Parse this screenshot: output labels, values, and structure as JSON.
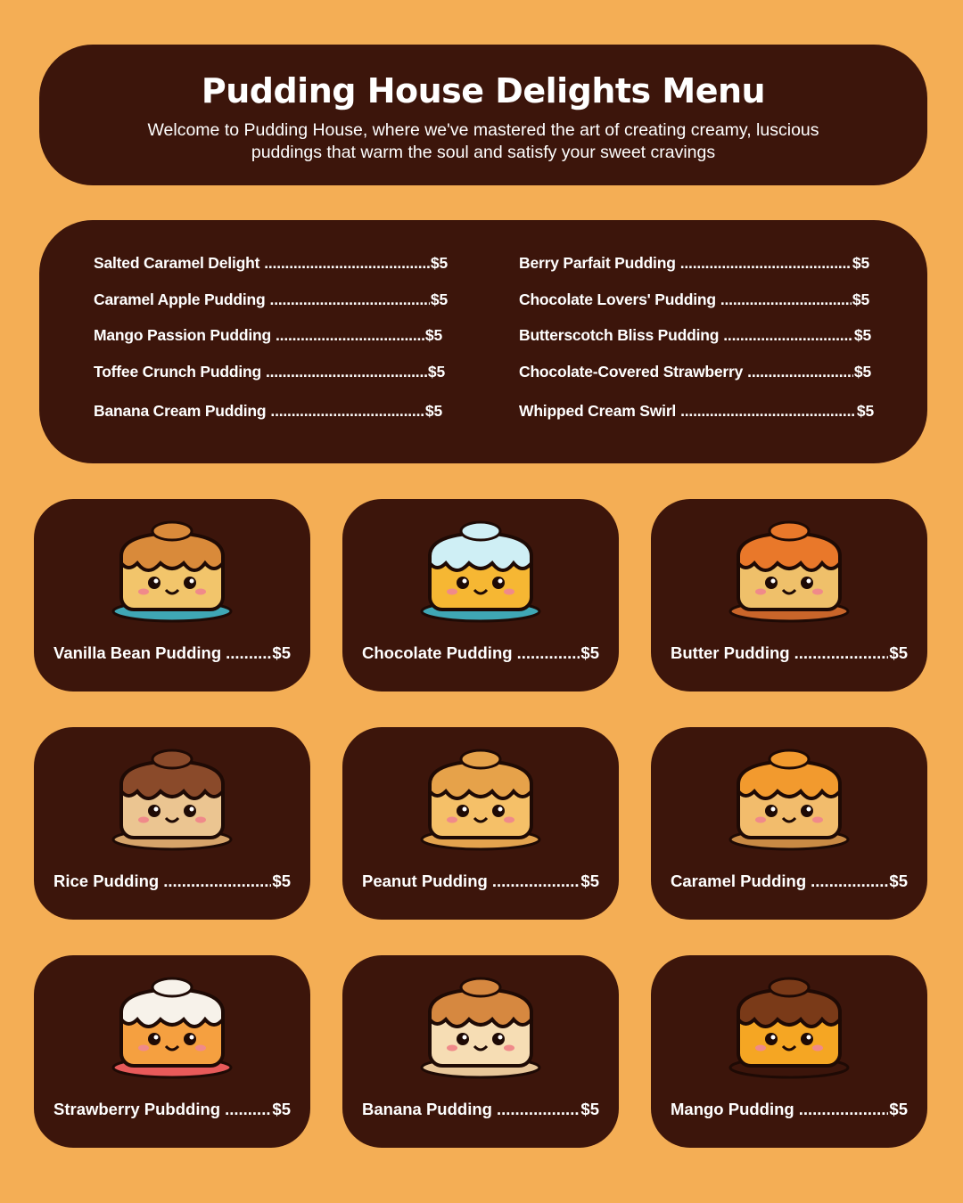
{
  "colors": {
    "background": "#F4AE55",
    "panel": "#3C150B",
    "text": "#FFFFFF"
  },
  "header": {
    "title": "Pudding House Delights Menu",
    "subtitle": "Welcome to Pudding House, where we've mastered the art of creating creamy, luscious puddings that warm the soul and satisfy your sweet cravings"
  },
  "menu_list": {
    "left": [
      {
        "name": "Salted Caramel Delight",
        "price": "$5"
      },
      {
        "name": "Caramel Apple Pudding",
        "price": "$5"
      },
      {
        "name": "Mango Passion Pudding",
        "price": "$5"
      },
      {
        "name": "Toffee Crunch Pudding",
        "price": "$5"
      },
      {
        "name": "Banana Cream Pudding",
        "price": "$5"
      }
    ],
    "right": [
      {
        "name": "Berry Parfait Pudding",
        "price": "$5"
      },
      {
        "name": "Chocolate Lovers' Pudding",
        "price": "$5"
      },
      {
        "name": "Butterscotch Bliss Pudding",
        "price": "$5"
      },
      {
        "name": "Chocolate-Covered Strawberry",
        "price": "$5"
      },
      {
        "name": "Whipped Cream Swirl",
        "price": "$5"
      }
    ]
  },
  "cards": [
    {
      "name": "Vanilla Bean Pudding",
      "price": "$5",
      "icon": "vanilla-pudding-icon",
      "body": "#F2C56B",
      "top": "#D98A3A",
      "plate": "#3FA7B5"
    },
    {
      "name": "Chocolate Pudding",
      "price": "$5",
      "icon": "chocolate-pudding-icon",
      "body": "#F6B733",
      "top": "#CFEFF5",
      "plate": "#3FA7B5"
    },
    {
      "name": "Butter Pudding",
      "price": "$5",
      "icon": "butter-pudding-icon",
      "body": "#EFC06A",
      "top": "#E9782A",
      "plate": "#C9652A"
    },
    {
      "name": "Rice Pudding",
      "price": "$5",
      "icon": "rice-pudding-icon",
      "body": "#EBC591",
      "top": "#8A4A2A",
      "plate": "#D6A46A"
    },
    {
      "name": "Peanut Pudding",
      "price": "$5",
      "icon": "peanut-pudding-icon",
      "body": "#F5C068",
      "top": "#E6A24A",
      "plate": "#E3A34E"
    },
    {
      "name": "Caramel Pudding",
      "price": "$5",
      "icon": "caramel-pudding-icon",
      "body": "#F2BC6C",
      "top": "#F29A2E",
      "plate": "#C98A44"
    },
    {
      "name": "Strawberry Pubdding",
      "price": "$5",
      "icon": "strawberry-pudding-icon",
      "body": "#F5A040",
      "top": "#F7F2EA",
      "plate": "#E85A5A"
    },
    {
      "name": "Banana Pudding",
      "price": "$5",
      "icon": "banana-pudding-icon",
      "body": "#F6DDB4",
      "top": "#D68840",
      "plate": "#E8C79A"
    },
    {
      "name": "Mango Pudding",
      "price": "$5",
      "icon": "mango-pudding-icon",
      "body": "#F5A623",
      "top": "#7A3A18",
      "plate": "#3C150B"
    }
  ]
}
